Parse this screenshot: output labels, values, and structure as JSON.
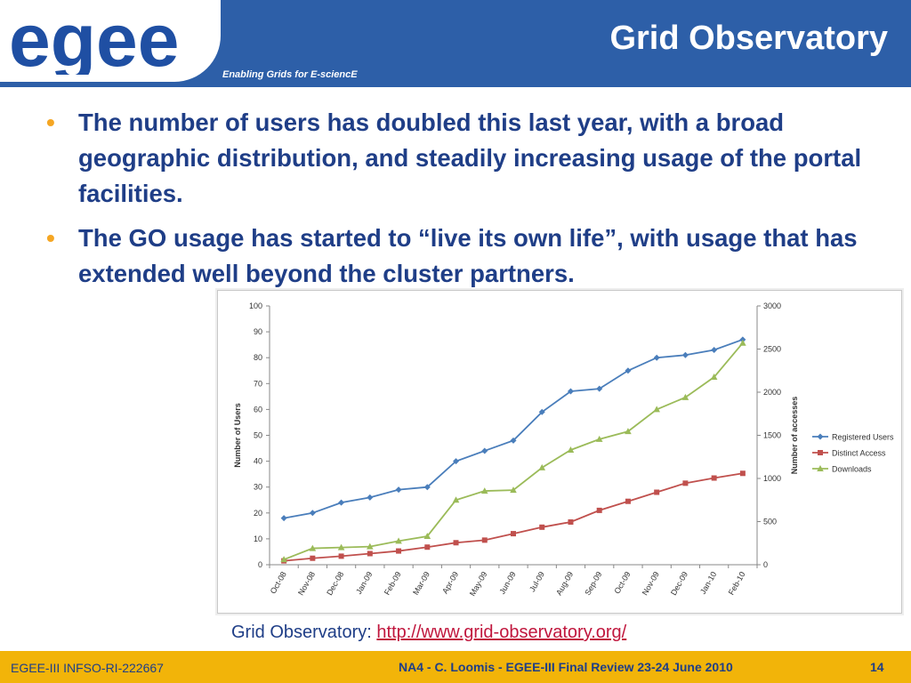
{
  "header": {
    "logo_text": "egee",
    "tagline": "Enabling Grids for E-sciencE",
    "title": "Grid Observatory"
  },
  "bullets": [
    "The number of users has doubled this last year, with a broad geographic distribution, and steadily increasing usage of the portal facilities.",
    "The GO usage has started to “live its own life”, with usage that has extended well beyond the cluster partners."
  ],
  "colors": {
    "header_blue": "#2d5fa8",
    "text_blue": "#1f3e87",
    "bullet_orange": "#f5a623",
    "footer_yellow": "#f2b409",
    "link_red": "#c0163d"
  },
  "chart_data": {
    "type": "line",
    "x": [
      "Oct-08",
      "Nov-08",
      "Dec-08",
      "Jan-09",
      "Feb-09",
      "Mar-09",
      "Apr-09",
      "May-09",
      "Jun-09",
      "Jul-09",
      "Aug-09",
      "Sep-09",
      "Oct-09",
      "Nov-09",
      "Dec-09",
      "Jan-10",
      "Feb-10"
    ],
    "ylabel": "Number of Users",
    "y2label": "Number of accesses",
    "ylim": [
      0,
      100
    ],
    "y2lim": [
      0,
      3000
    ],
    "yticks": [
      "0",
      "10",
      "20",
      "30",
      "40",
      "50",
      "60",
      "70",
      "80",
      "90",
      "100"
    ],
    "y2ticks": [
      "0",
      "500",
      "1000",
      "1500",
      "2000",
      "2500",
      "3000"
    ],
    "grid": false,
    "legend": "right",
    "series": [
      {
        "name": "Registered Users",
        "axis": "left",
        "color": "#4a7ebb",
        "marker": "diamond",
        "values": [
          18,
          20,
          24,
          26,
          29,
          30,
          40,
          44,
          48,
          59,
          67,
          68,
          75,
          80,
          81,
          83,
          87
        ]
      },
      {
        "name": "Distinct Access",
        "axis": "left",
        "color": "#c0504d",
        "marker": "square",
        "values": [
          1.5,
          2.5,
          3.3,
          4.3,
          5.3,
          6.8,
          8.5,
          9.5,
          12,
          14.5,
          16.5,
          21,
          24.5,
          28,
          31.5,
          33.5,
          35.3
        ]
      },
      {
        "name": "Downloads",
        "axis": "right",
        "color": "#9bbb59",
        "marker": "triangle",
        "values": [
          60,
          190,
          200,
          210,
          275,
          330,
          750,
          855,
          865,
          1125,
          1330,
          1455,
          1545,
          1800,
          1940,
          2175,
          2570
        ]
      }
    ]
  },
  "caption": {
    "label": "Grid Observatory: ",
    "link": "http://www.grid-observatory.org/"
  },
  "footer": {
    "left": "EGEE-III INFSO-RI-222667",
    "center": "NA4 - C. Loomis - EGEE-III Final Review 23-24 June 2010",
    "page": "14"
  }
}
